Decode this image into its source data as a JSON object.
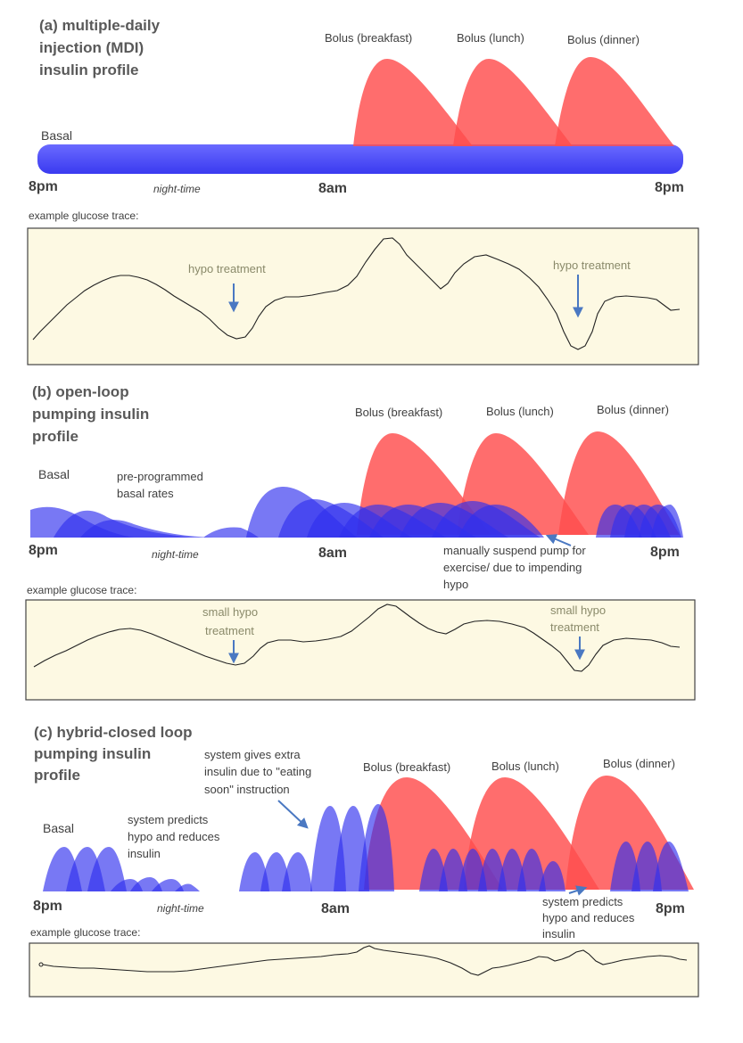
{
  "colors": {
    "bolus": "#ff4d4d",
    "basal": "#3030ee",
    "trace_box": "#fdf9e3",
    "arrow": "#4a78c2"
  },
  "panel_a": {
    "title_lines": [
      "(a) multiple-daily",
      "injection (MDI)",
      "insulin profile"
    ],
    "bolus_labels": [
      "Bolus (breakfast)",
      "Bolus (lunch)",
      "Bolus (dinner)"
    ],
    "basal_label": "Basal",
    "time_start": "8pm",
    "time_mid": "8am",
    "time_end": "8pm",
    "night_label": "night-time",
    "trace_label": "example glucose trace:",
    "hypo_label_1": "hypo treatment",
    "hypo_label_2": "hypo treatment"
  },
  "panel_b": {
    "title_lines": [
      "(b) open-loop",
      "pumping insulin",
      "profile"
    ],
    "bolus_labels": [
      "Bolus (breakfast)",
      "Bolus (lunch)",
      "Bolus (dinner)"
    ],
    "basal_label": "Basal",
    "preprog_lines": [
      "pre-programmed",
      "basal rates"
    ],
    "time_start": "8pm",
    "time_mid": "8am",
    "time_end": "8pm",
    "night_label": "night-time",
    "suspend_lines": [
      "manually suspend pump for",
      "exercise/ due to impending",
      "hypo"
    ],
    "trace_label": "example glucose trace:",
    "hypo1_lines": [
      "small hypo",
      "treatment"
    ],
    "hypo2_lines": [
      "small hypo",
      "treatment"
    ]
  },
  "panel_c": {
    "title_lines": [
      "(c) hybrid-closed loop",
      "pumping insulin",
      "profile"
    ],
    "extra_lines": [
      "system gives extra",
      "insulin due to \"eating",
      "soon\" instruction"
    ],
    "bolus_labels": [
      "Bolus (breakfast)",
      "Bolus (lunch)",
      "Bolus (dinner)"
    ],
    "basal_label": "Basal",
    "predict1_lines": [
      "system predicts",
      "hypo and reduces",
      "insulin"
    ],
    "predict2_lines": [
      "system predicts",
      "hypo and reduces",
      "insulin"
    ],
    "time_start": "8pm",
    "time_mid": "8am",
    "time_end": "8pm",
    "night_label": "night-time",
    "trace_label": "example glucose trace:"
  }
}
